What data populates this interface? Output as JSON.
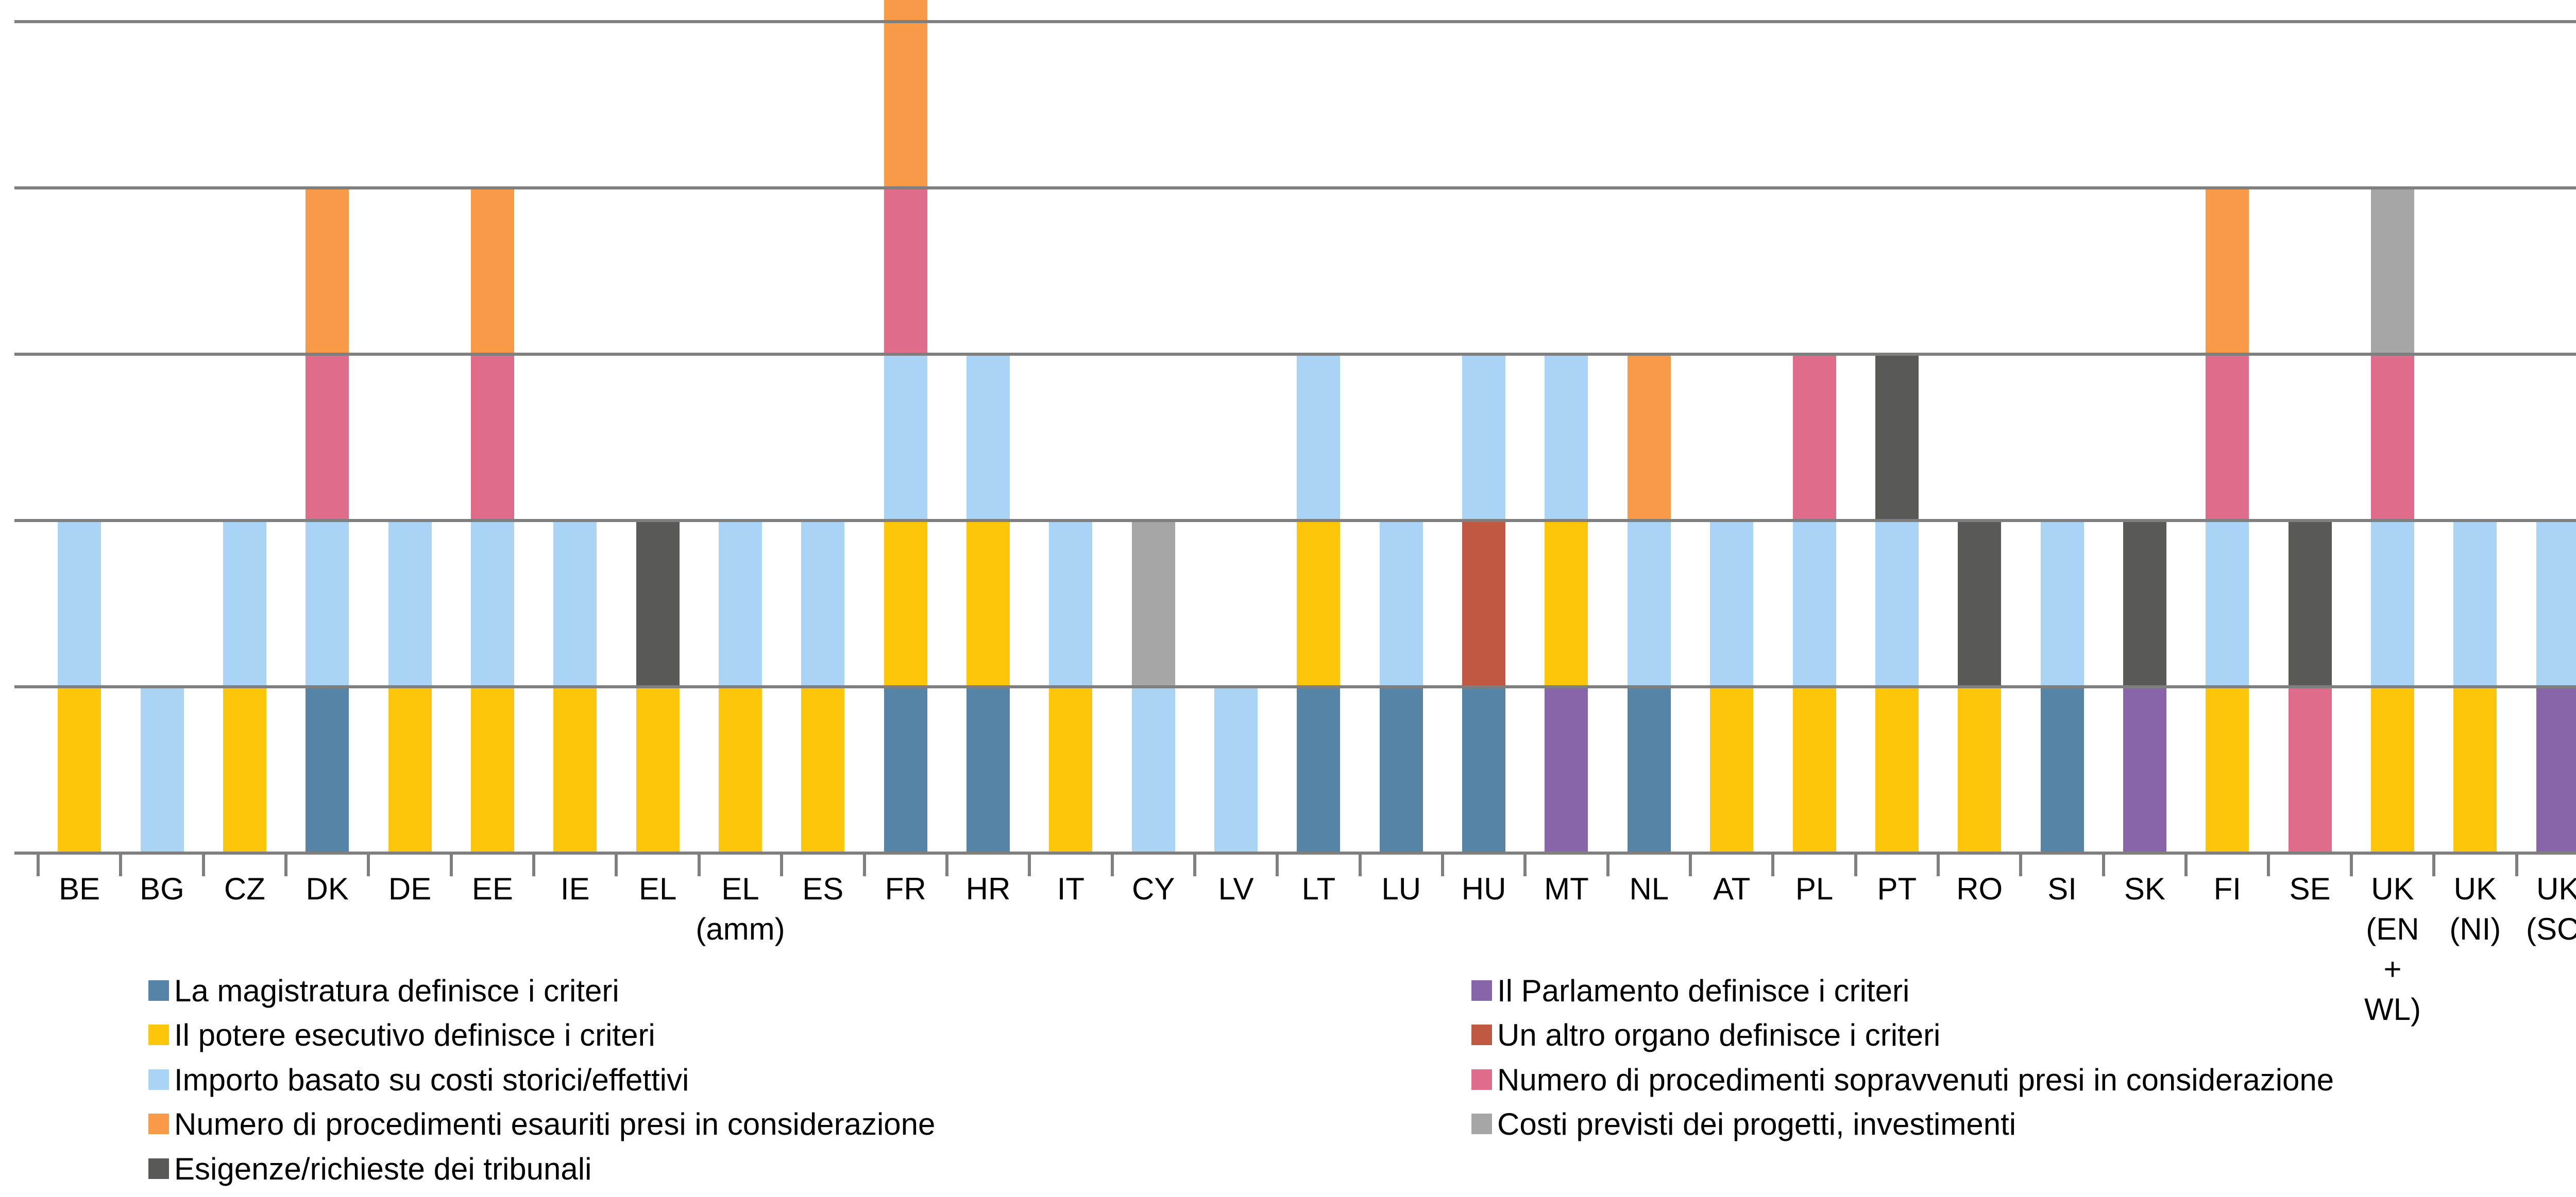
{
  "chart_data": {
    "type": "bar",
    "stacked": true,
    "title": "",
    "xlabel": "",
    "ylabel": "",
    "ylim": [
      0,
      5.13
    ],
    "y_gridline_values": [
      1,
      2,
      3,
      4,
      5
    ],
    "grid": true,
    "legend_position": "bottom-two-columns",
    "categories": [
      {
        "id": "BE",
        "lines": [
          "BE"
        ]
      },
      {
        "id": "BG",
        "lines": [
          "BG"
        ]
      },
      {
        "id": "CZ",
        "lines": [
          "CZ"
        ]
      },
      {
        "id": "DK",
        "lines": [
          "DK"
        ]
      },
      {
        "id": "DE",
        "lines": [
          "DE"
        ]
      },
      {
        "id": "EE",
        "lines": [
          "EE"
        ]
      },
      {
        "id": "IE",
        "lines": [
          "IE"
        ]
      },
      {
        "id": "EL",
        "lines": [
          "EL"
        ]
      },
      {
        "id": "EL (amm)",
        "lines": [
          "EL",
          "(amm)"
        ]
      },
      {
        "id": "ES",
        "lines": [
          "ES"
        ]
      },
      {
        "id": "FR",
        "lines": [
          "FR"
        ]
      },
      {
        "id": "HR",
        "lines": [
          "HR"
        ]
      },
      {
        "id": "IT",
        "lines": [
          "IT"
        ]
      },
      {
        "id": "CY",
        "lines": [
          "CY"
        ]
      },
      {
        "id": "LV",
        "lines": [
          "LV"
        ]
      },
      {
        "id": "LT",
        "lines": [
          "LT"
        ]
      },
      {
        "id": "LU",
        "lines": [
          "LU"
        ]
      },
      {
        "id": "HU",
        "lines": [
          "HU"
        ]
      },
      {
        "id": "MT",
        "lines": [
          "MT"
        ]
      },
      {
        "id": "NL",
        "lines": [
          "NL"
        ]
      },
      {
        "id": "AT",
        "lines": [
          "AT"
        ]
      },
      {
        "id": "PL",
        "lines": [
          "PL"
        ]
      },
      {
        "id": "PT",
        "lines": [
          "PT"
        ]
      },
      {
        "id": "RO",
        "lines": [
          "RO"
        ]
      },
      {
        "id": "SI",
        "lines": [
          "SI"
        ]
      },
      {
        "id": "SK",
        "lines": [
          "SK"
        ]
      },
      {
        "id": "FI",
        "lines": [
          "FI"
        ]
      },
      {
        "id": "SE",
        "lines": [
          "SE"
        ]
      },
      {
        "id": "UK (EN + WL)",
        "lines": [
          "UK",
          "(EN",
          "+",
          "WL)"
        ]
      },
      {
        "id": "UK (NI)",
        "lines": [
          "UK",
          "(NI)"
        ]
      },
      {
        "id": "UK (SC)",
        "lines": [
          "UK",
          "(SC)"
        ]
      }
    ],
    "series": [
      {
        "key": "magistratura",
        "label": "La magistratura definisce i criteri",
        "color": "#5684A6",
        "values": [
          0,
          0,
          0,
          1,
          0,
          0,
          0,
          0,
          0,
          0,
          1,
          1,
          0,
          0,
          0,
          1,
          1,
          1,
          0,
          1,
          0,
          0,
          0,
          0,
          1,
          0,
          0,
          0,
          0,
          0,
          0
        ]
      },
      {
        "key": "parlamento",
        "label": "Il Parlamento definisce i criteri",
        "color": "#8864A8",
        "values": [
          0,
          0,
          0,
          0,
          0,
          0,
          0,
          0,
          0,
          0,
          0,
          0,
          0,
          0,
          0,
          0,
          0,
          0,
          1,
          0,
          0,
          0,
          0,
          0,
          0,
          1,
          0,
          0,
          0,
          0,
          1
        ]
      },
      {
        "key": "esecutivo",
        "label": "Il potere esecutivo definisce i criteri",
        "color": "#FDC60B",
        "values": [
          1,
          0,
          1,
          0,
          1,
          1,
          1,
          1,
          1,
          1,
          1,
          1,
          1,
          0,
          0,
          1,
          0,
          0,
          1,
          0,
          1,
          1,
          1,
          1,
          0,
          0,
          1,
          0,
          1,
          1,
          0
        ]
      },
      {
        "key": "altro_organo",
        "label": "Un altro organo definisce i criteri",
        "color": "#BF5941",
        "values": [
          0,
          0,
          0,
          0,
          0,
          0,
          0,
          0,
          0,
          0,
          0,
          0,
          0,
          0,
          0,
          0,
          0,
          1,
          0,
          0,
          0,
          0,
          0,
          0,
          0,
          0,
          0,
          0,
          0,
          0,
          0
        ]
      },
      {
        "key": "costi_storici",
        "label": "Importo basato su costi storici/effettivi",
        "color": "#AAD4F5",
        "values": [
          1,
          1,
          1,
          1,
          1,
          1,
          1,
          0,
          1,
          1,
          1,
          1,
          1,
          1,
          1,
          1,
          1,
          1,
          1,
          1,
          1,
          1,
          1,
          0,
          1,
          0,
          1,
          0,
          1,
          1,
          1
        ]
      },
      {
        "key": "proc_sopravvenuti",
        "label": "Numero di procedimenti sopravvenuti presi in considerazione",
        "color": "#E06C8C",
        "values": [
          0,
          0,
          0,
          1,
          0,
          1,
          0,
          0,
          0,
          0,
          1,
          0,
          0,
          0,
          0,
          0,
          0,
          0,
          0,
          0,
          0,
          1,
          0,
          0,
          0,
          0,
          1,
          1,
          1,
          0,
          0
        ]
      },
      {
        "key": "proc_esauriti",
        "label": "Numero di procedimenti esauriti presi in considerazione",
        "color": "#F89A48",
        "values": [
          0,
          0,
          0,
          1,
          0,
          1,
          0,
          0,
          0,
          0,
          1.13,
          0,
          0,
          0,
          0,
          0,
          0,
          0,
          0,
          1,
          0,
          0,
          0,
          0,
          0,
          0,
          1,
          0,
          0,
          0,
          0
        ]
      },
      {
        "key": "costi_previsti",
        "label": "Costi previsti dei progetti, investimenti",
        "color": "#A6A6A6",
        "values": [
          0,
          0,
          0,
          0,
          0,
          0,
          0,
          0,
          0,
          0,
          0,
          0,
          0,
          1,
          0,
          0,
          0,
          0,
          0,
          0,
          0,
          0,
          0,
          0,
          0,
          0,
          0,
          0,
          1,
          0,
          0
        ]
      },
      {
        "key": "tribunali",
        "label": "Esigenze/richieste dei tribunali",
        "color": "#595957",
        "values": [
          0,
          0,
          0,
          0,
          0,
          0,
          0,
          1,
          0,
          0,
          0,
          0,
          0,
          0,
          0,
          0,
          0,
          0,
          0,
          0,
          0,
          0,
          1,
          1,
          0,
          1,
          0,
          1,
          0,
          0,
          0
        ]
      }
    ],
    "legend_columns": {
      "left": [
        "magistratura",
        "esecutivo",
        "costi_storici",
        "proc_esauriti",
        "tribunali"
      ],
      "right": [
        "parlamento",
        "altro_organo",
        "proc_sopravvenuti",
        "costi_previsti"
      ]
    }
  },
  "colors": {
    "background": "#FFFFFF",
    "gridline": "#7F7F7F",
    "axis": "#7F7F7F",
    "text": "#000000"
  }
}
